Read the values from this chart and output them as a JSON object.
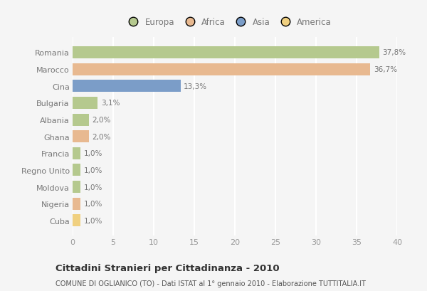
{
  "categories": [
    "Romania",
    "Marocco",
    "Cina",
    "Bulgaria",
    "Albania",
    "Ghana",
    "Francia",
    "Regno Unito",
    "Moldova",
    "Nigeria",
    "Cuba"
  ],
  "values": [
    37.8,
    36.7,
    13.3,
    3.1,
    2.0,
    2.0,
    1.0,
    1.0,
    1.0,
    1.0,
    1.0
  ],
  "labels": [
    "37,8%",
    "36,7%",
    "13,3%",
    "3,1%",
    "2,0%",
    "2,0%",
    "1,0%",
    "1,0%",
    "1,0%",
    "1,0%",
    "1,0%"
  ],
  "colors": [
    "#b5c98e",
    "#e8b990",
    "#7b9dc8",
    "#b5c98e",
    "#b5c98e",
    "#e8b990",
    "#b5c98e",
    "#b5c98e",
    "#b5c98e",
    "#e8b990",
    "#f0d080"
  ],
  "legend_labels": [
    "Europa",
    "Africa",
    "Asia",
    "America"
  ],
  "legend_colors": [
    "#b5c98e",
    "#e8b990",
    "#7b9dc8",
    "#f0d080"
  ],
  "xlim": [
    0,
    40
  ],
  "xticks": [
    0,
    5,
    10,
    15,
    20,
    25,
    30,
    35,
    40
  ],
  "title": "Cittadini Stranieri per Cittadinanza - 2010",
  "subtitle": "COMUNE DI OGLIANICO (TO) - Dati ISTAT al 1° gennaio 2010 - Elaborazione TUTTITALIA.IT",
  "background_color": "#f5f5f5",
  "grid_color": "#ffffff",
  "bar_height": 0.72,
  "label_color": "#777777",
  "tick_color": "#999999"
}
